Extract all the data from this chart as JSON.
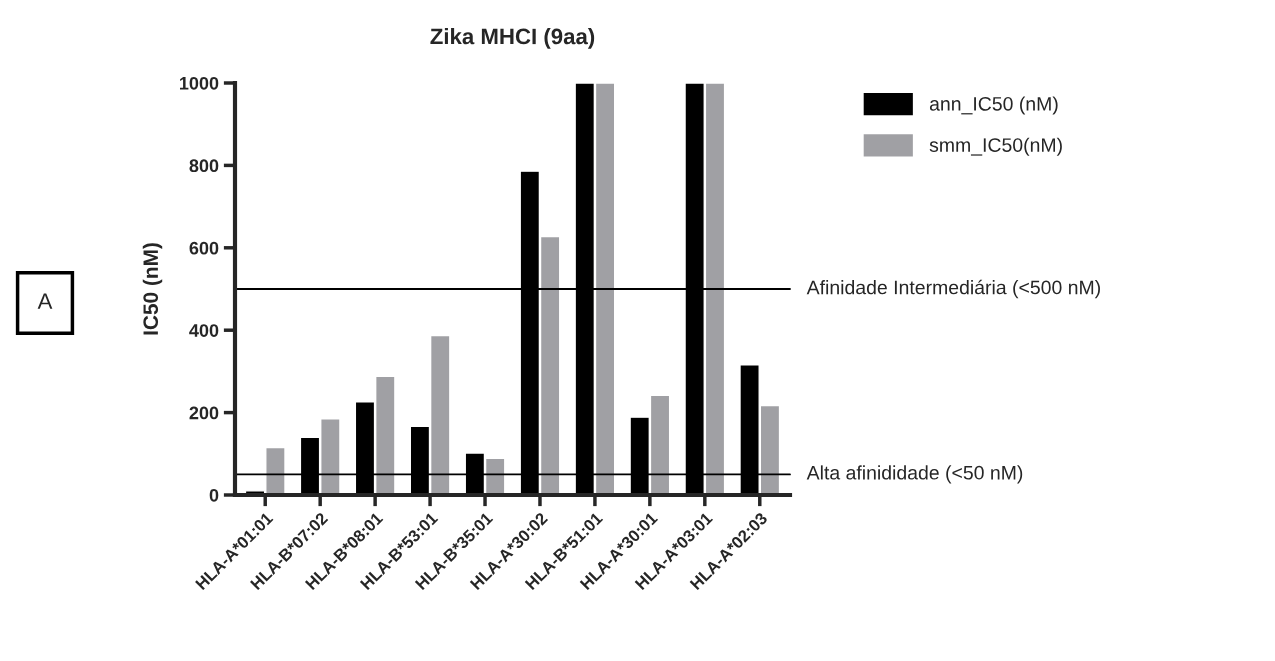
{
  "chart_data": {
    "type": "bar",
    "title": "Zika MHCI (9aa)",
    "ylabel": "IC50 (nM)",
    "categories": [
      "HLA-A*01:01",
      "HLA-B*07:02",
      "HLA-B*08:01",
      "HLA-B*53:01",
      "HLA-B*35:01",
      "HLA-A*30:02",
      "HLA-B*51:01",
      "HLA-A*30:01",
      "HLA-A*03:01",
      "HLA-A*02:03"
    ],
    "series": [
      {
        "name": "ann_IC50 (nM)",
        "color": "#000000",
        "values": [
          10,
          140,
          226,
          167,
          102,
          786,
          1000,
          189,
          1000,
          316
        ]
      },
      {
        "name": "smm_IC50(nM)",
        "color": "#a0a0a4",
        "values": [
          115,
          185,
          288,
          387,
          89,
          627,
          1000,
          242,
          1000,
          217
        ]
      }
    ],
    "ylim": [
      0,
      1000
    ],
    "yticks": [
      0,
      200,
      400,
      600,
      800,
      1000
    ],
    "ref_lines": [
      {
        "axis": "y",
        "value": 500,
        "label": "Afinidade Intermediária (<500 nM)",
        "color": "#000000"
      },
      {
        "axis": "y",
        "value": 50,
        "label": "Alta afinididade (<50 nM)",
        "color": "#000000"
      }
    ],
    "annotations": [
      "A"
    ],
    "grid": false,
    "legend": "top right"
  }
}
